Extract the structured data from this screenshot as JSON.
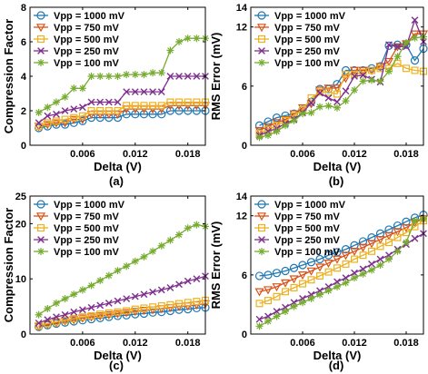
{
  "series_style": [
    {
      "name": "Vpp = 1000 mV",
      "color": "#1f77b4",
      "marker": "circle"
    },
    {
      "name": "Vpp = 750 mV",
      "color": "#d95319",
      "marker": "triangle-down"
    },
    {
      "name": "Vpp = 500 mV",
      "color": "#edb120",
      "marker": "square"
    },
    {
      "name": "Vpp = 250 mV",
      "color": "#7e2f8e",
      "marker": "x"
    },
    {
      "name": "Vpp = 100 mV",
      "color": "#77ac30",
      "marker": "star"
    }
  ],
  "chart_data": [
    {
      "type": "line",
      "caption": "(a)",
      "xlabel": "Delta (V)",
      "ylabel": "Compression Factor",
      "xlim": [
        0,
        0.02
      ],
      "ylim": [
        0,
        8
      ],
      "xticks": [
        0.006,
        0.012,
        0.018
      ],
      "yticks": [
        0,
        2,
        4,
        6,
        8
      ],
      "xtick_labels": [
        "0.006",
        "0.012",
        "0.018"
      ],
      "ytick_labels": [
        "0",
        "2",
        "4",
        "6",
        "8"
      ],
      "legend": "top-left",
      "grid": false,
      "x": [
        0.001,
        0.002,
        0.003,
        0.004,
        0.005,
        0.006,
        0.007,
        0.008,
        0.009,
        0.01,
        0.011,
        0.012,
        0.013,
        0.014,
        0.015,
        0.016,
        0.017,
        0.018,
        0.019,
        0.02
      ],
      "series": [
        {
          "name": "Vpp = 1000 mV",
          "values": [
            1.0,
            1.1,
            1.2,
            1.2,
            1.3,
            1.4,
            1.6,
            1.6,
            1.6,
            1.6,
            1.8,
            1.8,
            1.8,
            1.8,
            1.8,
            2.0,
            2.0,
            2.0,
            2.0,
            2.0
          ]
        },
        {
          "name": "Vpp = 750 mV",
          "values": [
            1.1,
            1.2,
            1.3,
            1.3,
            1.5,
            1.5,
            1.8,
            1.8,
            1.8,
            1.8,
            2.1,
            2.1,
            2.1,
            2.1,
            2.1,
            2.3,
            2.3,
            2.3,
            2.3,
            2.3
          ]
        },
        {
          "name": "Vpp = 500 mV",
          "values": [
            1.1,
            1.3,
            1.4,
            1.5,
            1.6,
            1.7,
            2.0,
            2.0,
            2.0,
            2.0,
            2.3,
            2.3,
            2.3,
            2.3,
            2.3,
            2.5,
            2.5,
            2.5,
            2.5,
            2.5
          ]
        },
        {
          "name": "Vpp = 250 mV",
          "values": [
            1.3,
            1.7,
            1.8,
            2.0,
            2.1,
            2.2,
            2.5,
            2.5,
            2.5,
            2.5,
            3.1,
            3.1,
            3.1,
            3.1,
            3.1,
            4.0,
            4.0,
            4.0,
            4.0,
            4.0
          ]
        },
        {
          "name": "Vpp = 100 mV",
          "values": [
            1.9,
            2.2,
            2.5,
            2.8,
            3.3,
            3.3,
            4.0,
            4.0,
            4.0,
            4.0,
            4.1,
            4.1,
            4.1,
            4.2,
            4.2,
            5.5,
            6.0,
            6.2,
            6.2,
            6.2
          ]
        }
      ]
    },
    {
      "type": "line",
      "caption": "(b)",
      "xlabel": "Delta (V)",
      "ylabel": "RMS Error (mV)",
      "xlim": [
        0,
        0.02
      ],
      "ylim": [
        0,
        14
      ],
      "xticks": [
        0.006,
        0.012,
        0.018
      ],
      "yticks": [
        0,
        6,
        12,
        14
      ],
      "xtick_labels": [
        "0.006",
        "0.012",
        "0.018"
      ],
      "ytick_labels": [
        "0",
        "6",
        "12",
        "14"
      ],
      "legend": "top-left",
      "grid": false,
      "x": [
        0.001,
        0.002,
        0.003,
        0.004,
        0.005,
        0.006,
        0.007,
        0.008,
        0.009,
        0.01,
        0.011,
        0.012,
        0.013,
        0.014,
        0.015,
        0.016,
        0.017,
        0.018,
        0.019,
        0.02
      ],
      "series": [
        {
          "name": "Vpp = 1000 mV",
          "values": [
            2.0,
            2.4,
            2.8,
            3.0,
            3.2,
            3.6,
            4.4,
            5.7,
            5.7,
            6.2,
            7.6,
            7.6,
            7.6,
            7.8,
            8.0,
            10.1,
            10.2,
            10.2,
            8.6,
            9.8
          ]
        },
        {
          "name": "Vpp = 750 mV",
          "values": [
            1.5,
            1.9,
            2.3,
            2.6,
            3.2,
            3.8,
            4.2,
            5.6,
            5.8,
            5.8,
            6.8,
            7.6,
            7.6,
            7.6,
            8.0,
            8.5,
            10.0,
            10.3,
            11.3,
            11.3
          ]
        },
        {
          "name": "Vpp = 500 mV",
          "values": [
            1.2,
            1.6,
            2.0,
            2.5,
            3.0,
            3.6,
            4.8,
            5.4,
            5.4,
            5.2,
            7.2,
            7.2,
            7.4,
            7.6,
            7.8,
            7.8,
            8.3,
            7.8,
            7.6,
            7.5
          ]
        },
        {
          "name": "Vpp = 250 mV",
          "values": [
            1.0,
            1.4,
            1.7,
            2.2,
            2.6,
            3.3,
            4.3,
            5.3,
            4.8,
            4.4,
            5.5,
            7.0,
            7.1,
            6.7,
            6.4,
            10.2,
            10.0,
            10.0,
            12.7,
            10.5
          ]
        },
        {
          "name": "Vpp = 100 mV",
          "values": [
            0.8,
            1.0,
            1.4,
            2.0,
            2.5,
            3.2,
            3.3,
            3.9,
            4.0,
            3.8,
            4.5,
            5.6,
            6.5,
            6.6,
            6.5,
            7.5,
            9.0,
            10.4,
            10.9,
            11.0
          ]
        }
      ]
    },
    {
      "type": "line",
      "caption": "(c)",
      "xlabel": "Delta (V)",
      "ylabel": "Compression Factor",
      "xlim": [
        0,
        0.02
      ],
      "ylim": [
        0,
        25
      ],
      "xticks": [
        0.006,
        0.012,
        0.018
      ],
      "yticks": [
        0,
        10,
        20,
        25
      ],
      "xtick_labels": [
        "0.006",
        "0.012",
        "0.018"
      ],
      "ytick_labels": [
        "0",
        "10",
        "20",
        "25"
      ],
      "legend": "top-left",
      "grid": false,
      "x": [
        0.001,
        0.002,
        0.003,
        0.004,
        0.005,
        0.006,
        0.007,
        0.008,
        0.009,
        0.01,
        0.011,
        0.012,
        0.013,
        0.014,
        0.015,
        0.016,
        0.017,
        0.018,
        0.019,
        0.02
      ],
      "series": [
        {
          "name": "Vpp = 1000 mV",
          "values": [
            1.3,
            1.6,
            1.9,
            2.1,
            2.3,
            2.5,
            2.7,
            2.9,
            3.1,
            3.3,
            3.4,
            3.6,
            3.7,
            3.9,
            4.0,
            4.2,
            4.4,
            4.5,
            4.7,
            4.8
          ]
        },
        {
          "name": "Vpp = 750 mV",
          "values": [
            1.4,
            1.8,
            2.1,
            2.4,
            2.6,
            2.9,
            3.1,
            3.3,
            3.5,
            3.7,
            3.9,
            4.1,
            4.3,
            4.4,
            4.6,
            4.8,
            5.0,
            5.1,
            5.3,
            5.5
          ]
        },
        {
          "name": "Vpp = 500 mV",
          "values": [
            1.5,
            1.9,
            2.2,
            2.5,
            2.8,
            3.1,
            3.3,
            3.6,
            3.8,
            4.0,
            4.2,
            4.5,
            4.7,
            4.9,
            5.1,
            5.3,
            5.5,
            5.7,
            5.9,
            6.1
          ]
        },
        {
          "name": "Vpp = 250 mV",
          "values": [
            2.0,
            2.6,
            3.1,
            3.5,
            4.0,
            4.4,
            4.8,
            5.2,
            5.6,
            6.0,
            6.4,
            6.8,
            7.2,
            7.6,
            8.0,
            8.4,
            9.0,
            9.6,
            10.0,
            10.5
          ]
        },
        {
          "name": "Vpp = 100 mV",
          "values": [
            3.5,
            4.6,
            5.6,
            6.4,
            7.2,
            8.0,
            8.8,
            9.7,
            10.6,
            11.5,
            12.3,
            13.2,
            14.0,
            15.0,
            16.0,
            17.0,
            18.0,
            19.2,
            19.8,
            19.5
          ]
        }
      ]
    },
    {
      "type": "line",
      "caption": "(d)",
      "xlabel": "Delta (V)",
      "ylabel": "RMS Error (mV)",
      "xlim": [
        0,
        0.02
      ],
      "ylim": [
        0,
        14
      ],
      "xticks": [
        0.006,
        0.012,
        0.018
      ],
      "yticks": [
        0,
        6,
        12,
        14
      ],
      "xtick_labels": [
        "0.006",
        "0.012",
        "0.018"
      ],
      "ytick_labels": [
        "0",
        "6",
        "12",
        "14"
      ],
      "legend": "top-left",
      "grid": false,
      "x": [
        0.001,
        0.002,
        0.003,
        0.004,
        0.005,
        0.006,
        0.007,
        0.008,
        0.009,
        0.01,
        0.011,
        0.012,
        0.013,
        0.014,
        0.015,
        0.016,
        0.017,
        0.018,
        0.019,
        0.02
      ],
      "series": [
        {
          "name": "Vpp = 1000 mV",
          "values": [
            5.9,
            6.0,
            6.2,
            6.4,
            6.7,
            7.0,
            7.3,
            7.6,
            8.0,
            8.3,
            8.6,
            9.0,
            9.4,
            9.8,
            10.2,
            10.6,
            11.0,
            11.4,
            11.8,
            12.1
          ]
        },
        {
          "name": "Vpp = 750 mV",
          "values": [
            4.3,
            4.5,
            4.8,
            5.2,
            5.6,
            6.0,
            6.4,
            6.8,
            7.2,
            7.6,
            8.0,
            8.4,
            8.8,
            9.2,
            9.6,
            10.0,
            10.4,
            10.8,
            11.3,
            11.7
          ]
        },
        {
          "name": "Vpp = 500 mV",
          "values": [
            3.1,
            3.4,
            3.8,
            4.3,
            4.7,
            5.1,
            5.5,
            5.9,
            6.3,
            6.7,
            7.1,
            7.6,
            8.0,
            8.4,
            8.9,
            9.3,
            9.8,
            10.3,
            10.9,
            11.5
          ]
        },
        {
          "name": "Vpp = 250 mV",
          "values": [
            1.5,
            1.8,
            2.3,
            2.7,
            3.2,
            3.6,
            4.0,
            4.4,
            4.8,
            5.3,
            5.7,
            6.2,
            6.6,
            7.1,
            7.6,
            8.0,
            8.6,
            9.1,
            9.7,
            10.2
          ]
        },
        {
          "name": "Vpp = 100 mV",
          "values": [
            0.8,
            1.3,
            1.8,
            2.3,
            2.8,
            3.2,
            3.6,
            4.0,
            4.4,
            4.8,
            5.2,
            5.7,
            6.1,
            6.5,
            7.0,
            7.6,
            8.4,
            9.3,
            11.5,
            11.7
          ]
        }
      ]
    }
  ]
}
